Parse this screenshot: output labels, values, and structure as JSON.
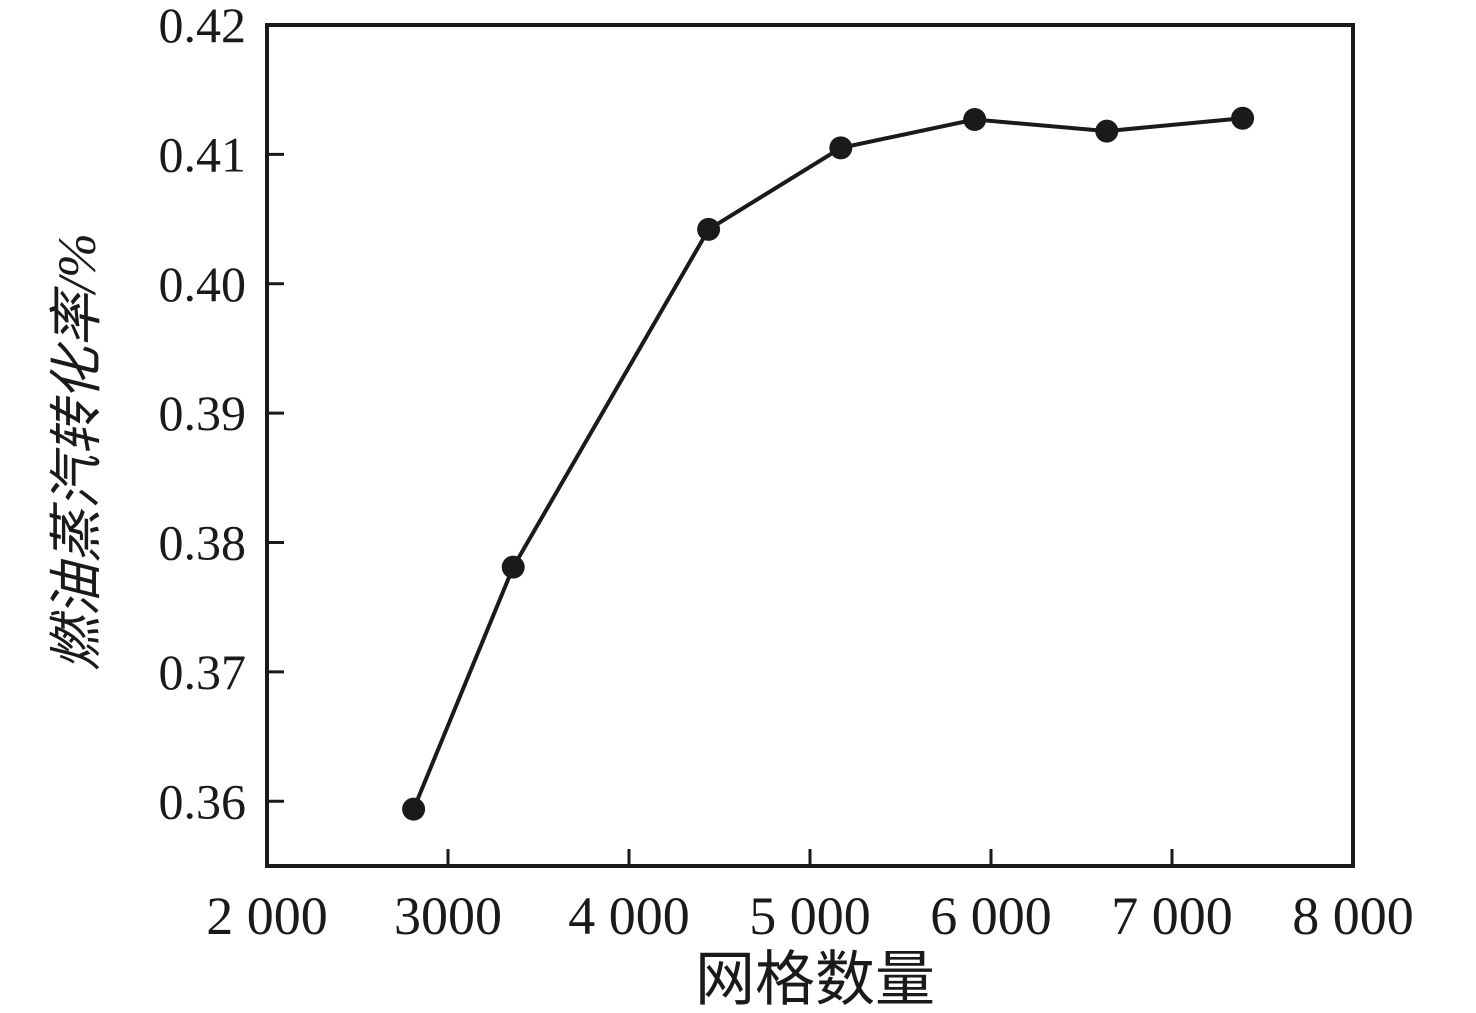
{
  "chart_data": {
    "type": "line",
    "title": "",
    "xlabel": "网格数量",
    "ylabel": "燃油蒸汽转化率/%",
    "x": [
      2810,
      3360,
      4440,
      5170,
      5910,
      6640,
      7390
    ],
    "y": [
      0.3594,
      0.3781,
      0.4042,
      0.4105,
      0.4127,
      0.4118,
      0.4128
    ],
    "xlim": [
      2000,
      8000
    ],
    "ylim": [
      0.355,
      0.42
    ],
    "x_ticks": {
      "values": [
        2000,
        3000,
        4000,
        5000,
        6000,
        7000,
        8000
      ],
      "labels": [
        "2 000",
        "3000",
        "4 000",
        "5 000",
        "6 000",
        "7 000",
        "8 000"
      ]
    },
    "y_ticks": {
      "values": [
        0.36,
        0.37,
        0.38,
        0.39,
        0.4,
        0.41,
        0.42
      ],
      "labels": [
        "0.36",
        "0.37",
        "0.38",
        "0.39",
        "0.40",
        "0.41",
        "0.42"
      ]
    },
    "grid": false,
    "legend": "none",
    "line_style": "solid",
    "marker": "filled-circle",
    "colors": {
      "line": "#1a1a1a",
      "marker": "#1a1a1a",
      "axis": "#1a1a1a",
      "text": "#1a1a1a",
      "background": "#ffffff"
    }
  }
}
